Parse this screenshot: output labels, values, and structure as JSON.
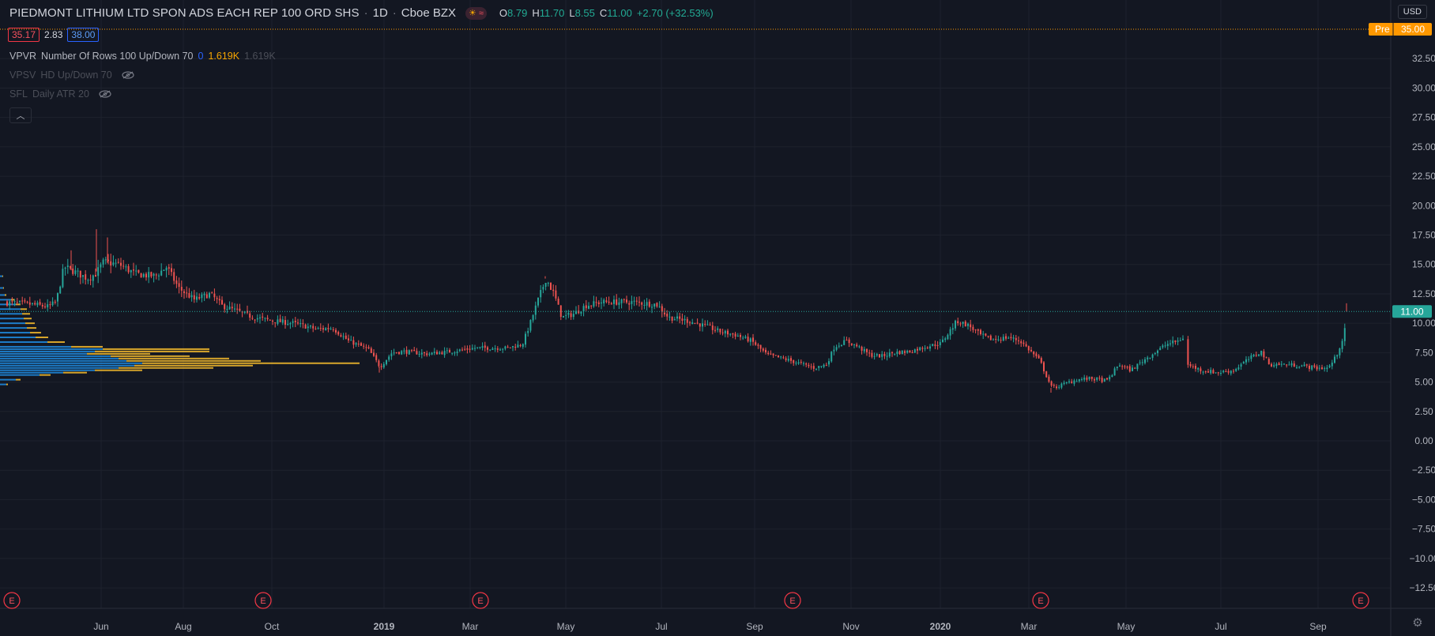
{
  "header": {
    "symbol": "PIEDMONT LITHIUM LTD SPON ADS EACH REP 100 ORD SHS",
    "interval": "1D",
    "exchange": "Cboe BZX",
    "ohlc": {
      "o_label": "O",
      "o": "8.79",
      "h_label": "H",
      "h": "11.70",
      "l_label": "L",
      "l": "8.55",
      "c_label": "C",
      "c": "11.00",
      "change": "+2.70 (+32.53%)"
    }
  },
  "trade": {
    "sell": "35.17",
    "spread": "2.83",
    "buy": "38.00"
  },
  "indicators": [
    {
      "name": "VPVR",
      "params": "Number Of Rows 100 Up/Down 70",
      "v1": "0",
      "v2": "1.619K",
      "v3": "1.619K"
    },
    {
      "name": "VPSV",
      "params": "HD Up/Down 70"
    },
    {
      "name": "SFL",
      "params": "Daily ATR 20"
    }
  ],
  "currency": "USD",
  "colors": {
    "up": "#26a69a",
    "down": "#ef5350",
    "bg": "#131722",
    "grid": "#1e222d",
    "last": "#26a69a",
    "pre": "#ff9800"
  },
  "chart_data": {
    "type": "candlestick",
    "y_ticks": [
      "32.50",
      "30.00",
      "27.50",
      "25.00",
      "22.50",
      "20.00",
      "17.50",
      "15.00",
      "12.50",
      "10.00",
      "7.50",
      "5.00",
      "2.50",
      "0.00",
      "−2.50",
      "−5.00",
      "−7.50",
      "−10.00",
      "−12.50"
    ],
    "ylim": [
      -14,
      37
    ],
    "x_labels": [
      "Jun",
      "Aug",
      "Oct",
      "2019",
      "Mar",
      "May",
      "Jul",
      "Sep",
      "Nov",
      "2020",
      "Mar",
      "May",
      "Jul",
      "Sep"
    ],
    "earnings_marker": "E",
    "last_price": {
      "label": "11.00",
      "value": 11.0
    },
    "pre_price": {
      "tag": "Pre",
      "label": "35.00",
      "value": 35.0
    },
    "price_path": [
      [
        0,
        11.8
      ],
      [
        40,
        11.6
      ],
      [
        60,
        11.4
      ],
      [
        70,
        11.8
      ],
      [
        80,
        14.8
      ],
      [
        90,
        14.5
      ],
      [
        110,
        13.8
      ],
      [
        120,
        14.2
      ],
      [
        130,
        15.2
      ],
      [
        150,
        15.0
      ],
      [
        170,
        14.2
      ],
      [
        195,
        14.0
      ],
      [
        210,
        14.8
      ],
      [
        225,
        13.0
      ],
      [
        245,
        12.0
      ],
      [
        265,
        12.5
      ],
      [
        280,
        11.5
      ],
      [
        300,
        11.0
      ],
      [
        320,
        10.5
      ],
      [
        345,
        10.2
      ],
      [
        370,
        10.0
      ],
      [
        400,
        9.5
      ],
      [
        420,
        9.6
      ],
      [
        440,
        8.5
      ],
      [
        465,
        7.8
      ],
      [
        480,
        6.3
      ],
      [
        495,
        7.5
      ],
      [
        510,
        7.6
      ],
      [
        540,
        7.4
      ],
      [
        570,
        7.6
      ],
      [
        600,
        7.9
      ],
      [
        640,
        7.9
      ],
      [
        660,
        8.2
      ],
      [
        670,
        10.0
      ],
      [
        680,
        12.0
      ],
      [
        690,
        13.8
      ],
      [
        700,
        12.5
      ],
      [
        710,
        10.5
      ],
      [
        725,
        10.8
      ],
      [
        740,
        11.5
      ],
      [
        760,
        11.8
      ],
      [
        800,
        11.8
      ],
      [
        830,
        11.6
      ],
      [
        845,
        10.5
      ],
      [
        870,
        10.2
      ],
      [
        890,
        9.8
      ],
      [
        910,
        9.3
      ],
      [
        930,
        9.0
      ],
      [
        950,
        8.5
      ],
      [
        970,
        7.3
      ],
      [
        990,
        7.0
      ],
      [
        1010,
        6.6
      ],
      [
        1030,
        6.2
      ],
      [
        1045,
        6.5
      ],
      [
        1055,
        8.0
      ],
      [
        1070,
        8.5
      ],
      [
        1085,
        8.0
      ],
      [
        1100,
        7.3
      ],
      [
        1115,
        7.2
      ],
      [
        1130,
        7.5
      ],
      [
        1150,
        7.6
      ],
      [
        1170,
        8.0
      ],
      [
        1190,
        8.3
      ],
      [
        1210,
        10.2
      ],
      [
        1225,
        9.8
      ],
      [
        1240,
        9.0
      ],
      [
        1255,
        8.6
      ],
      [
        1275,
        8.8
      ],
      [
        1290,
        8.5
      ],
      [
        1305,
        7.5
      ],
      [
        1315,
        6.8
      ],
      [
        1330,
        4.5
      ],
      [
        1345,
        4.8
      ],
      [
        1360,
        5.2
      ],
      [
        1380,
        5.3
      ],
      [
        1400,
        5.1
      ],
      [
        1415,
        6.5
      ],
      [
        1430,
        6.0
      ],
      [
        1445,
        6.8
      ],
      [
        1460,
        7.5
      ],
      [
        1475,
        8.2
      ],
      [
        1490,
        8.5
      ],
      [
        1497,
        8.8
      ],
      [
        1500,
        null
      ],
      [
        1500,
        6.5
      ],
      [
        1520,
        6.0
      ],
      [
        1540,
        5.8
      ],
      [
        1560,
        6.0
      ],
      [
        1580,
        7.0
      ],
      [
        1595,
        7.6
      ],
      [
        1605,
        6.5
      ],
      [
        1625,
        6.5
      ],
      [
        1645,
        6.4
      ],
      [
        1665,
        6.2
      ],
      [
        1680,
        6.2
      ],
      [
        1690,
        7.2
      ],
      [
        1700,
        9.0
      ],
      [
        1704,
        11.0
      ]
    ],
    "volume_profile": [
      {
        "y": 12.4,
        "up": 6,
        "dn": 2
      },
      {
        "y": 12.0,
        "up": 14,
        "dn": 4
      },
      {
        "y": 11.6,
        "up": 20,
        "dn": 6
      },
      {
        "y": 11.2,
        "up": 26,
        "dn": 8
      },
      {
        "y": 10.8,
        "up": 28,
        "dn": 10
      },
      {
        "y": 10.4,
        "up": 30,
        "dn": 10
      },
      {
        "y": 10.0,
        "up": 32,
        "dn": 12
      },
      {
        "y": 9.6,
        "up": 34,
        "dn": 12
      },
      {
        "y": 9.2,
        "up": 38,
        "dn": 14
      },
      {
        "y": 8.8,
        "up": 45,
        "dn": 16
      },
      {
        "y": 8.4,
        "up": 60,
        "dn": 22
      },
      {
        "y": 8.0,
        "up": 90,
        "dn": 40
      },
      {
        "y": 7.8,
        "up": 130,
        "dn": 135
      },
      {
        "y": 7.6,
        "up": 120,
        "dn": 145
      },
      {
        "y": 7.4,
        "up": 110,
        "dn": 80
      },
      {
        "y": 7.2,
        "up": 140,
        "dn": 100
      },
      {
        "y": 7.0,
        "up": 150,
        "dn": 140
      },
      {
        "y": 6.8,
        "up": 160,
        "dn": 170
      },
      {
        "y": 6.6,
        "up": 180,
        "dn": 275
      },
      {
        "y": 6.4,
        "up": 170,
        "dn": 150
      },
      {
        "y": 6.2,
        "up": 150,
        "dn": 120
      },
      {
        "y": 6.0,
        "up": 120,
        "dn": 60
      },
      {
        "y": 5.8,
        "up": 80,
        "dn": 30
      },
      {
        "y": 5.6,
        "up": 50,
        "dn": 14
      },
      {
        "y": 5.2,
        "up": 20,
        "dn": 6
      },
      {
        "y": 4.8,
        "up": 8,
        "dn": 2
      },
      {
        "y": 13.0,
        "up": 4,
        "dn": 1
      },
      {
        "y": 14.0,
        "up": 3,
        "dn": 1
      }
    ]
  }
}
